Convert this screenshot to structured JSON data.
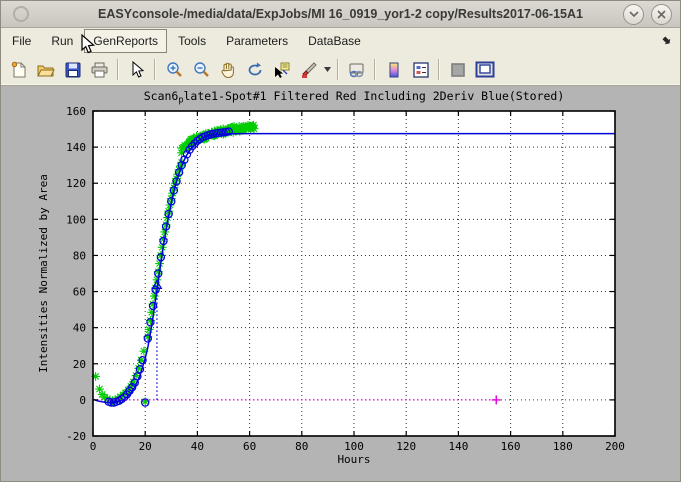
{
  "window": {
    "title": "EASYconsole-/media/data/ExpJobs/MI 16_0919_yor1-2 copy/Results2017-06-15A1",
    "controls": [
      "window-menu",
      "shade",
      "close"
    ]
  },
  "menu_bar": {
    "items": [
      "File",
      "Run",
      "GenReports",
      "Tools",
      "Parameters",
      "DataBase"
    ],
    "active_item": "GenReports"
  },
  "toolbar": {
    "icons": [
      "new-file",
      "open-folder",
      "save",
      "print",
      "edit-cursor",
      "zoom-in",
      "zoom-out",
      "pan-hand",
      "rotate-3d",
      "data-cursor",
      "brush",
      "brush-dropdown",
      "link-plots",
      "insert-colorbar",
      "insert-legend",
      "hide-plot-tools",
      "dock-figure"
    ]
  },
  "chart_data": {
    "type": "scatter",
    "title": "Scan6_plate1-Spot#1 Filtered Red Including 2Deriv Blue(Stored)",
    "title_parts": {
      "pre": "Scan6",
      "sub": "p",
      "post": "late1-Spot#1 Filtered Red Including 2Deriv Blue(Stored)"
    },
    "xlabel": "Hours",
    "ylabel": "Intensities Normalized by Area",
    "xlim": [
      0,
      200
    ],
    "ylim": [
      -20,
      160
    ],
    "xticks": [
      0,
      20,
      40,
      60,
      80,
      100,
      120,
      140,
      160,
      180,
      200
    ],
    "yticks": [
      -20,
      0,
      20,
      40,
      60,
      80,
      100,
      120,
      140,
      160
    ],
    "grid": true,
    "colors": {
      "data": "#00cc00",
      "fit": "#0000dd",
      "baseline": "#dd00dd",
      "grid": "#333333",
      "plot_bg": "#ffffff",
      "figure_bg": "#b4b4b4"
    },
    "series": [
      {
        "name": "filtered-red-data",
        "marker": "asterisk",
        "color": "#00cc00",
        "points": [
          [
            1,
            13
          ],
          [
            2.5,
            6
          ],
          [
            3.5,
            3
          ],
          [
            4.5,
            1.5
          ],
          [
            5.5,
            0.5
          ],
          [
            6.5,
            0
          ],
          [
            7.5,
            -0.5
          ],
          [
            8.5,
            0
          ],
          [
            9.5,
            0.8
          ],
          [
            10.5,
            1.8
          ],
          [
            11.5,
            2.8
          ],
          [
            12.5,
            4
          ],
          [
            13.5,
            5.5
          ],
          [
            14.5,
            7.5
          ],
          [
            15.5,
            10
          ],
          [
            16.5,
            13.5
          ],
          [
            17.5,
            17.5
          ],
          [
            18.5,
            22
          ],
          [
            19.5,
            27
          ],
          [
            20,
            -1
          ],
          [
            21,
            35
          ],
          [
            21.5,
            39
          ],
          [
            22,
            44
          ],
          [
            22.5,
            48.5
          ],
          [
            23,
            53
          ],
          [
            23.5,
            57.5
          ],
          [
            24,
            62
          ],
          [
            24.5,
            66.5
          ],
          [
            25,
            71
          ],
          [
            25.5,
            75.5
          ],
          [
            26,
            80
          ],
          [
            26.5,
            84.5
          ],
          [
            27,
            89
          ],
          [
            27.5,
            93
          ],
          [
            28,
            97
          ],
          [
            28.5,
            101
          ],
          [
            29,
            104.5
          ],
          [
            29.5,
            108
          ],
          [
            30,
            111.5
          ],
          [
            30.5,
            114.5
          ],
          [
            31,
            117.5
          ],
          [
            31.5,
            120
          ],
          [
            32,
            122.5
          ],
          [
            32.5,
            125
          ],
          [
            33,
            127.5
          ],
          [
            33.5,
            129.5
          ],
          [
            34,
            131.5
          ]
        ]
      },
      {
        "name": "filtered-red-data-band",
        "marker": "asterisk-band",
        "color": "#00cc00",
        "x_start": 34,
        "x_end": 62,
        "y_start": 133,
        "y_end": 151.5,
        "curve_pow": 0.3,
        "count": 120,
        "jitter": 1.6
      },
      {
        "name": "fit-sample-circles",
        "marker": "circle",
        "color": "#0000dd",
        "points": [
          [
            6,
            -1
          ],
          [
            7,
            -1.5
          ],
          [
            8,
            -1.5
          ],
          [
            9,
            -1
          ],
          [
            10,
            -0.5
          ],
          [
            11,
            0.5
          ],
          [
            12,
            1.5
          ],
          [
            13,
            3
          ],
          [
            14,
            5
          ],
          [
            15,
            7
          ],
          [
            16,
            9.5
          ],
          [
            17,
            13
          ],
          [
            18,
            17
          ],
          [
            19,
            22
          ],
          [
            20,
            -1.5
          ],
          [
            21,
            34
          ],
          [
            22,
            43
          ],
          [
            23,
            52
          ],
          [
            24,
            61
          ],
          [
            25,
            70
          ],
          [
            26,
            79
          ],
          [
            27,
            88
          ],
          [
            28,
            96
          ],
          [
            29,
            103
          ],
          [
            30,
            110
          ],
          [
            31,
            116
          ],
          [
            32,
            121
          ],
          [
            33,
            126
          ],
          [
            34,
            130
          ],
          [
            35,
            133
          ],
          [
            36,
            136
          ],
          [
            37,
            138.5
          ],
          [
            38,
            140.5
          ],
          [
            39,
            142
          ],
          [
            40,
            143.5
          ],
          [
            41,
            144.5
          ],
          [
            42,
            145.5
          ],
          [
            43,
            146
          ],
          [
            44,
            146.5
          ],
          [
            45,
            147
          ],
          [
            46,
            147.3
          ],
          [
            47,
            147.6
          ],
          [
            48,
            147.8
          ],
          [
            49,
            148
          ],
          [
            50,
            148.2
          ],
          [
            51,
            148.4
          ],
          [
            52,
            148.6
          ]
        ]
      },
      {
        "name": "fit-line",
        "line": "solid",
        "color": "#0000dd",
        "width": 1.5,
        "points": [
          [
            0,
            0.3
          ],
          [
            2,
            -0.6
          ],
          [
            4,
            -1.2
          ],
          [
            6,
            -1.5
          ],
          [
            8,
            -1.4
          ],
          [
            10,
            -0.9
          ],
          [
            12,
            0.3
          ],
          [
            14,
            2.8
          ],
          [
            16,
            7
          ],
          [
            18,
            13.5
          ],
          [
            20,
            23
          ],
          [
            21,
            29
          ],
          [
            22,
            37
          ],
          [
            23,
            46
          ],
          [
            24,
            56
          ],
          [
            25,
            66
          ],
          [
            26,
            76
          ],
          [
            27,
            85.5
          ],
          [
            28,
            94
          ],
          [
            29,
            102
          ],
          [
            30,
            109
          ],
          [
            31,
            115.5
          ],
          [
            32,
            121
          ],
          [
            33,
            125.5
          ],
          [
            34,
            129.5
          ],
          [
            35,
            133
          ],
          [
            36,
            135.8
          ],
          [
            37,
            138
          ],
          [
            38,
            140
          ],
          [
            39,
            141.6
          ],
          [
            40,
            143
          ],
          [
            42,
            145
          ],
          [
            44,
            146.2
          ],
          [
            46,
            146.8
          ],
          [
            48,
            147.1
          ],
          [
            52,
            147.4
          ],
          [
            60,
            147.5
          ],
          [
            200,
            147.5
          ]
        ]
      },
      {
        "name": "baseline-2deriv",
        "line": "dotted",
        "color": "#dd00dd",
        "width": 1.2,
        "points": [
          [
            0,
            0
          ],
          [
            154,
            0
          ]
        ]
      },
      {
        "name": "baseline-end-marker",
        "marker": "plus",
        "color": "#dd00dd",
        "points": [
          [
            154.5,
            0
          ]
        ]
      },
      {
        "name": "inflection-drop-line",
        "line": "dotted",
        "color": "#0000dd",
        "width": 1.2,
        "points": [
          [
            24.5,
            0
          ],
          [
            24.5,
            61
          ]
        ]
      },
      {
        "name": "inflection-marker",
        "marker": "triangle-up-open",
        "color": "#0000dd",
        "points": [
          [
            24.5,
            63.5
          ]
        ]
      }
    ]
  }
}
